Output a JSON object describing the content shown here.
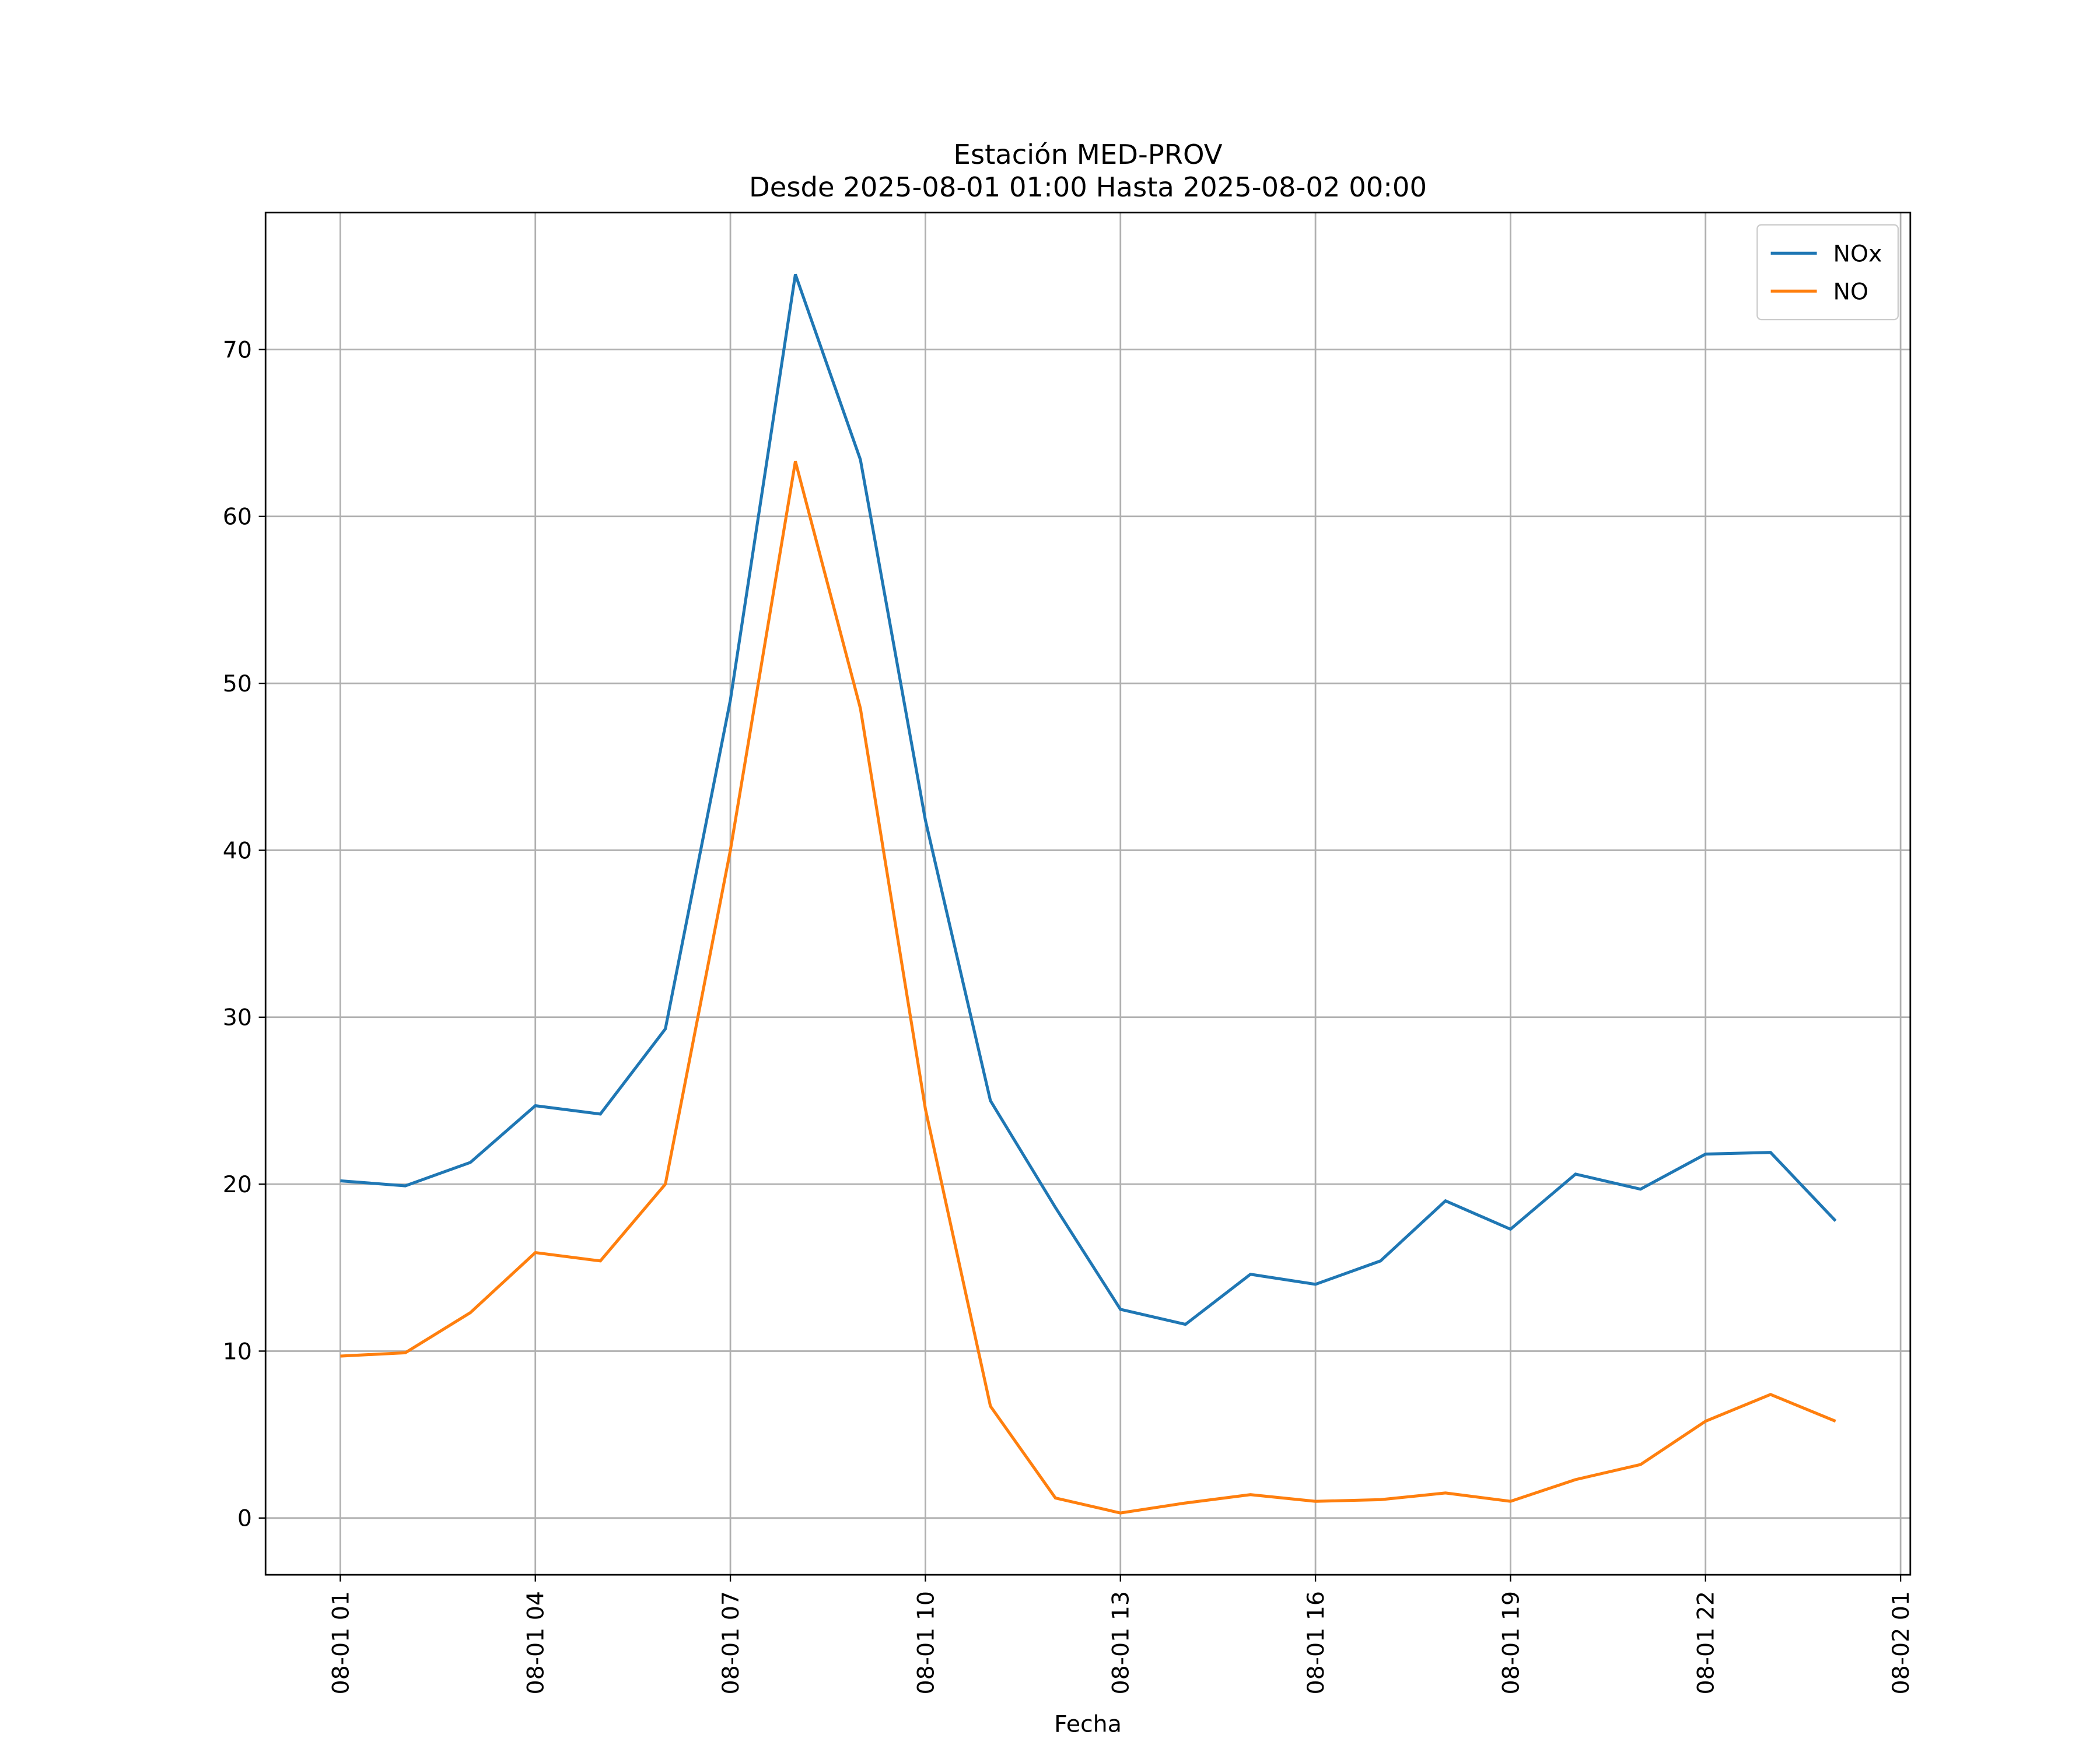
{
  "chart_data": {
    "type": "line",
    "title": "Estación MED-PROV",
    "subtitle": "Desde 2025-08-01 01:00 Hasta 2025-08-02 00:00",
    "x_label": "Fecha",
    "x": [
      "08-01 01",
      "08-01 02",
      "08-01 03",
      "08-01 04",
      "08-01 05",
      "08-01 06",
      "08-01 07",
      "08-01 08",
      "08-01 09",
      "08-01 10",
      "08-01 11",
      "08-01 12",
      "08-01 13",
      "08-01 14",
      "08-01 15",
      "08-01 16",
      "08-01 17",
      "08-01 18",
      "08-01 19",
      "08-01 20",
      "08-01 21",
      "08-01 22",
      "08-01 23",
      "08-02 00"
    ],
    "series": [
      {
        "name": "NOx",
        "color": "#1f77b4",
        "values": [
          20.2,
          19.9,
          21.3,
          24.7,
          24.2,
          29.3,
          49.0,
          74.5,
          63.4,
          41.8,
          25.0,
          18.6,
          12.5,
          11.6,
          14.6,
          14.0,
          15.4,
          19.0,
          17.3,
          20.6,
          19.7,
          21.8,
          21.9,
          17.8
        ]
      },
      {
        "name": "NO",
        "color": "#ff7f0e",
        "values": [
          9.7,
          9.9,
          12.3,
          15.9,
          15.4,
          20.0,
          40.0,
          63.3,
          48.5,
          24.5,
          6.7,
          1.2,
          0.3,
          0.9,
          1.4,
          1.0,
          1.1,
          1.5,
          1.0,
          2.3,
          3.2,
          5.8,
          7.4,
          5.8
        ]
      }
    ],
    "xlim": [
      "07-31 23:51",
      "08-02 01:09"
    ],
    "xticks": [
      "08-01 01",
      "08-01 04",
      "08-01 07",
      "08-01 10",
      "08-01 13",
      "08-01 16",
      "08-01 19",
      "08-01 22",
      "08-02 01"
    ],
    "ylim": [
      -3.4,
      78.2
    ],
    "yticks": [
      0,
      10,
      20,
      30,
      40,
      50,
      60,
      70
    ],
    "grid": true,
    "legend": "upper right"
  }
}
